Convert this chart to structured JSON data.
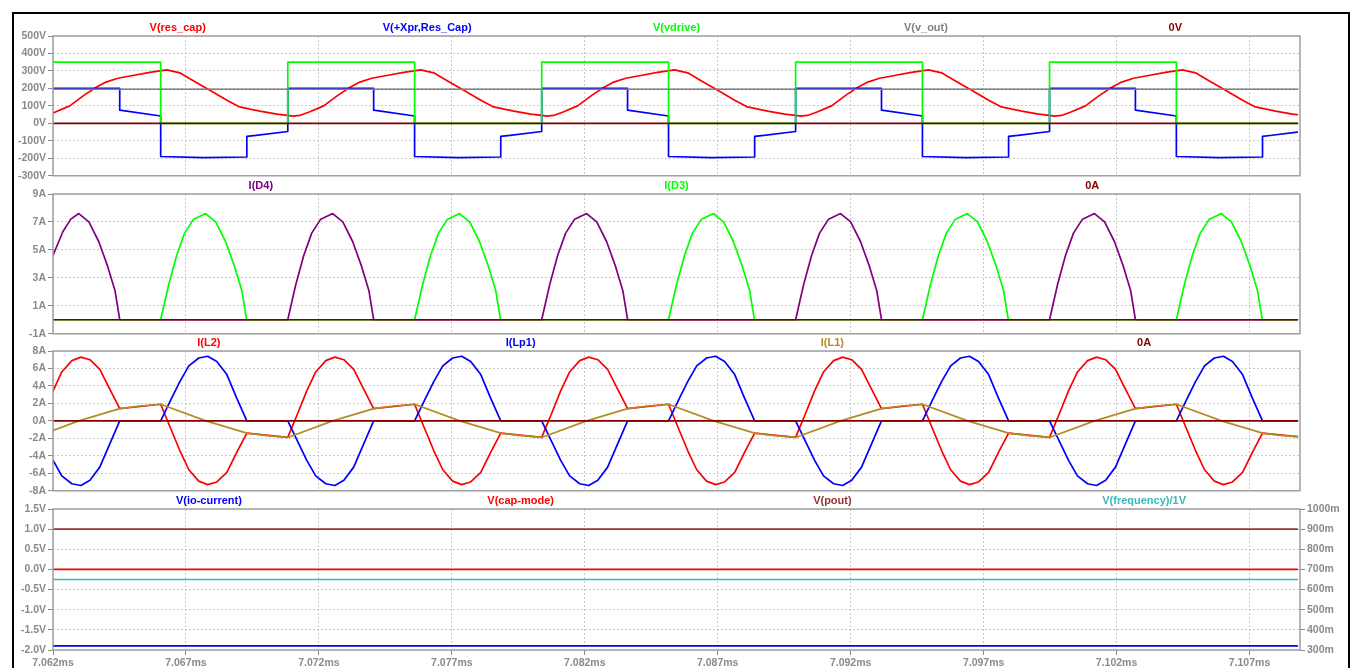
{
  "chart_data": [
    {
      "type": "line",
      "xlim": [
        7.062,
        7.1089
      ],
      "xticks": [
        {
          "value": 7.062,
          "label": null
        },
        {
          "value": 7.067,
          "label": null
        },
        {
          "value": 7.072,
          "label": null
        },
        {
          "value": 7.077,
          "label": null
        },
        {
          "value": 7.082,
          "label": null
        },
        {
          "value": 7.087,
          "label": null
        },
        {
          "value": 7.092,
          "label": null
        },
        {
          "value": 7.097,
          "label": null
        },
        {
          "value": 7.102,
          "label": null
        },
        {
          "value": 7.107,
          "label": null
        }
      ],
      "ylim": [
        -300,
        500
      ],
      "yticks": [
        {
          "value": -300,
          "label": "-300V"
        },
        {
          "value": -200,
          "label": "-200V"
        },
        {
          "value": -100,
          "label": "-100V"
        },
        {
          "value": 0,
          "label": "0V"
        },
        {
          "value": 100,
          "label": "100V"
        },
        {
          "value": 200,
          "label": "200V"
        },
        {
          "value": 300,
          "label": "300V"
        },
        {
          "value": 400,
          "label": "400V"
        },
        {
          "value": 500,
          "label": "500V"
        }
      ],
      "tick_labels": "y",
      "grid": true,
      "legend": "top",
      "marker": "none",
      "series": [
        {
          "name": "V(res_cap)",
          "color": "#ff0000",
          "x": [
            7.062,
            7.06211,
            7.06263,
            7.06316,
            7.06361,
            7.06399,
            7.06444,
            7.065,
            7.06564,
            7.06628,
            7.06677,
            7.06726,
            7.0679,
            7.06854,
            7.06902,
            7.06978,
            7.07042,
            7.07083,
            7.07102,
            7.07128,
            7.07166,
            7.07218,
            7.07271,
            7.07316,
            7.07354,
            7.07399,
            7.07455,
            7.07519,
            7.07583,
            7.07632,
            7.07681,
            7.07745,
            7.07809,
            7.07857,
            7.07933,
            7.07997,
            7.08038,
            7.08057,
            7.08083,
            7.08121,
            7.08173,
            7.08226,
            7.08271,
            7.08309,
            7.08354,
            7.0841,
            7.08474,
            7.08538,
            7.08587,
            7.08636,
            7.087,
            7.08764,
            7.08812,
            7.08888,
            7.08952,
            7.08993,
            7.09012,
            7.09038,
            7.09076,
            7.09128,
            7.09181,
            7.09226,
            7.09264,
            7.09309,
            7.09365,
            7.09429,
            7.09493,
            7.09542,
            7.09591,
            7.09655,
            7.09719,
            7.09767,
            7.09843,
            7.09907,
            7.09948,
            7.09967,
            7.09993,
            7.10031,
            7.10083,
            7.10136,
            7.10181,
            7.10219,
            7.10264,
            7.1032,
            7.10384,
            7.10448,
            7.10497,
            7.10546,
            7.1061,
            7.10674,
            7.10722,
            7.10798,
            7.10862,
            7.1088
          ],
          "values": [
            58,
            66,
            100,
            160,
            205,
            236,
            258,
            274,
            292,
            306,
            289,
            245,
            189,
            132,
            94,
            70,
            53,
            45,
            41,
            45,
            66,
            100,
            160,
            205,
            236,
            258,
            274,
            292,
            306,
            289,
            245,
            189,
            132,
            94,
            70,
            53,
            45,
            41,
            45,
            66,
            100,
            160,
            205,
            236,
            258,
            274,
            292,
            306,
            289,
            245,
            189,
            132,
            94,
            70,
            53,
            45,
            41,
            45,
            66,
            100,
            160,
            205,
            236,
            258,
            274,
            292,
            306,
            289,
            245,
            189,
            132,
            94,
            70,
            53,
            45,
            41,
            45,
            66,
            100,
            160,
            205,
            236,
            258,
            274,
            292,
            306,
            289,
            245,
            189,
            132,
            94,
            70,
            53,
            50
          ]
        },
        {
          "name": "V(+Xpr,Res_Cap)",
          "color": "#0000ff",
          "x": [
            7.062,
            7.06451,
            7.06451,
            7.06605,
            7.06605,
            7.06767,
            7.06929,
            7.06929,
            7.07083,
            7.07083,
            7.07406,
            7.07406,
            7.0756,
            7.0756,
            7.07722,
            7.07884,
            7.07884,
            7.08038,
            7.08038,
            7.08361,
            7.08361,
            7.08515,
            7.08515,
            7.08677,
            7.08839,
            7.08839,
            7.08993,
            7.08993,
            7.09316,
            7.09316,
            7.0947,
            7.0947,
            7.09632,
            7.09794,
            7.09794,
            7.09948,
            7.09948,
            7.10271,
            7.10271,
            7.10425,
            7.10425,
            7.10587,
            7.10749,
            7.10749,
            7.1088
          ],
          "values": [
            200,
            200,
            75,
            42,
            -190,
            -197,
            -193,
            -75,
            -47,
            200,
            200,
            75,
            42,
            -190,
            -197,
            -193,
            -75,
            -47,
            200,
            200,
            75,
            42,
            -190,
            -197,
            -193,
            -75,
            -47,
            200,
            200,
            75,
            42,
            -190,
            -197,
            -193,
            -75,
            -47,
            200,
            200,
            75,
            42,
            -190,
            -197,
            -193,
            -75,
            -51
          ]
        },
        {
          "name": "V(vdrive)",
          "color": "#00ff00",
          "x": [
            7.062,
            7.06605,
            7.06605,
            7.07083,
            7.07083,
            7.0756,
            7.0756,
            7.08038,
            7.08038,
            7.08515,
            7.08515,
            7.08993,
            7.08993,
            7.0947,
            7.0947,
            7.09948,
            7.09948,
            7.10425,
            7.10425,
            7.1088
          ],
          "values": [
            350,
            350,
            0,
            0,
            350,
            350,
            0,
            0,
            350,
            350,
            0,
            0,
            350,
            350,
            0,
            0,
            350,
            350,
            0,
            0
          ]
        },
        {
          "name": "V(v_out)",
          "color": "#808080",
          "x": [
            7.062,
            7.1088
          ],
          "values": [
            195,
            195
          ]
        },
        {
          "name": "0V",
          "color": "#800000",
          "x": [
            7.062,
            7.1088
          ],
          "values": [
            0,
            0
          ]
        }
      ]
    },
    {
      "type": "line",
      "xlim": [
        7.062,
        7.1089
      ],
      "xticks": [
        {
          "value": 7.062,
          "label": null
        },
        {
          "value": 7.067,
          "label": null
        },
        {
          "value": 7.072,
          "label": null
        },
        {
          "value": 7.077,
          "label": null
        },
        {
          "value": 7.082,
          "label": null
        },
        {
          "value": 7.087,
          "label": null
        },
        {
          "value": 7.092,
          "label": null
        },
        {
          "value": 7.097,
          "label": null
        },
        {
          "value": 7.102,
          "label": null
        },
        {
          "value": 7.107,
          "label": null
        }
      ],
      "ylim": [
        -1,
        9
      ],
      "yticks": [
        {
          "value": -1,
          "label": "-1A"
        },
        {
          "value": 1,
          "label": "1A"
        },
        {
          "value": 3,
          "label": "3A"
        },
        {
          "value": 5,
          "label": "5A"
        },
        {
          "value": 7,
          "label": "7A"
        },
        {
          "value": 9,
          "label": "9A"
        }
      ],
      "tick_labels": "y",
      "grid": true,
      "legend": "top",
      "marker": "none",
      "series": [
        {
          "name": "I(D4)",
          "color": "#800080",
          "x": [
            7.062,
            7.06237,
            7.06267,
            7.06297,
            7.06335,
            7.06372,
            7.06406,
            7.06433,
            7.06451,
            7.07083,
            7.07113,
            7.07143,
            7.07173,
            7.07207,
            7.07252,
            7.0729,
            7.07327,
            7.07361,
            7.07388,
            7.07406,
            7.08038,
            7.08068,
            7.08098,
            7.08128,
            7.08162,
            7.08207,
            7.08245,
            7.08282,
            7.08316,
            7.08343,
            7.08361,
            7.08993,
            7.09023,
            7.09053,
            7.09083,
            7.09117,
            7.09162,
            7.092,
            7.09237,
            7.09271,
            7.09298,
            7.09316,
            7.09948,
            7.09978,
            7.10008,
            7.10038,
            7.10072,
            7.10117,
            7.10155,
            7.10192,
            7.10226,
            7.10253,
            7.10271,
            7.1088
          ],
          "values": [
            4.6,
            6.3,
            7.2,
            7.6,
            7.0,
            5.6,
            3.8,
            2.1,
            0,
            0,
            2.5,
            4.6,
            6.2,
            7.2,
            7.6,
            7.0,
            5.6,
            3.8,
            2.1,
            0,
            0,
            2.5,
            4.6,
            6.2,
            7.2,
            7.6,
            7.0,
            5.6,
            3.8,
            2.1,
            0,
            0,
            2.5,
            4.6,
            6.2,
            7.2,
            7.6,
            7.0,
            5.6,
            3.8,
            2.1,
            0,
            0,
            2.5,
            4.6,
            6.2,
            7.2,
            7.6,
            7.0,
            5.6,
            3.8,
            2.1,
            0,
            0
          ]
        },
        {
          "name": "I(D3)",
          "color": "#00ff00",
          "x": [
            7.062,
            7.06605,
            7.06635,
            7.06665,
            7.06695,
            7.06729,
            7.06774,
            7.06812,
            7.06849,
            7.06883,
            7.0691,
            7.06928,
            7.0756,
            7.0759,
            7.0762,
            7.0765,
            7.07684,
            7.07729,
            7.07767,
            7.07804,
            7.07838,
            7.07865,
            7.07883,
            7.08515,
            7.08545,
            7.08575,
            7.08605,
            7.08639,
            7.08684,
            7.08722,
            7.08759,
            7.08793,
            7.0882,
            7.08838,
            7.0947,
            7.095,
            7.0953,
            7.0956,
            7.09594,
            7.09639,
            7.09677,
            7.09714,
            7.09748,
            7.09775,
            7.09793,
            7.10425,
            7.10455,
            7.10485,
            7.10515,
            7.10549,
            7.10594,
            7.10632,
            7.10669,
            7.10703,
            7.1073,
            7.10748,
            7.1088
          ],
          "values": [
            0,
            0,
            2.5,
            4.6,
            6.2,
            7.2,
            7.6,
            7.0,
            5.6,
            3.8,
            2.1,
            0,
            0,
            2.5,
            4.6,
            6.2,
            7.2,
            7.6,
            7.0,
            5.6,
            3.8,
            2.1,
            0,
            0,
            2.5,
            4.6,
            6.2,
            7.2,
            7.6,
            7.0,
            5.6,
            3.8,
            2.1,
            0,
            0,
            2.5,
            4.6,
            6.2,
            7.2,
            7.6,
            7.0,
            5.6,
            3.8,
            2.1,
            0,
            0,
            2.5,
            4.6,
            6.2,
            7.2,
            7.6,
            7.0,
            5.6,
            3.8,
            2.1,
            0,
            0
          ]
        },
        {
          "name": "0A",
          "color": "#800000",
          "x": [
            7.062,
            7.1088
          ],
          "values": [
            0,
            0
          ]
        }
      ]
    },
    {
      "type": "line",
      "xlim": [
        7.062,
        7.1089
      ],
      "xticks": [
        {
          "value": 7.062,
          "label": null
        },
        {
          "value": 7.067,
          "label": null
        },
        {
          "value": 7.072,
          "label": null
        },
        {
          "value": 7.077,
          "label": null
        },
        {
          "value": 7.082,
          "label": null
        },
        {
          "value": 7.087,
          "label": null
        },
        {
          "value": 7.092,
          "label": null
        },
        {
          "value": 7.097,
          "label": null
        },
        {
          "value": 7.102,
          "label": null
        },
        {
          "value": 7.107,
          "label": null
        }
      ],
      "ylim": [
        -8,
        8
      ],
      "yticks": [
        {
          "value": -8,
          "label": "-8A"
        },
        {
          "value": -6,
          "label": "-6A"
        },
        {
          "value": -4,
          "label": "-4A"
        },
        {
          "value": -2,
          "label": "-2A"
        },
        {
          "value": 0,
          "label": "0A"
        },
        {
          "value": 2,
          "label": "2A"
        },
        {
          "value": 4,
          "label": "4A"
        },
        {
          "value": 6,
          "label": "6A"
        },
        {
          "value": 8,
          "label": "8A"
        }
      ],
      "tick_labels": "y",
      "grid": true,
      "legend": "top",
      "marker": "none",
      "x": [
        7.062,
        7.06233,
        7.06271,
        7.06305,
        7.06339,
        7.06376,
        7.06414,
        7.06451,
        7.06605,
        7.06643,
        7.06677,
        7.06711,
        7.06748,
        7.06782,
        7.06816,
        7.06854,
        7.06891,
        7.06929,
        7.07083,
        7.07121,
        7.07154,
        7.07188,
        7.07226,
        7.0726,
        7.07294,
        7.07331,
        7.07369,
        7.07406,
        7.0756,
        7.07598,
        7.07632,
        7.07666,
        7.07703,
        7.07737,
        7.07771,
        7.07809,
        7.07846,
        7.07884,
        7.08038,
        7.08076,
        7.08109,
        7.08143,
        7.08181,
        7.08215,
        7.08249,
        7.08286,
        7.08324,
        7.08361,
        7.08515,
        7.08553,
        7.08587,
        7.08621,
        7.08658,
        7.08692,
        7.08726,
        7.08764,
        7.08801,
        7.08839,
        7.08993,
        7.09031,
        7.09064,
        7.09098,
        7.09136,
        7.0917,
        7.09204,
        7.09241,
        7.09279,
        7.09316,
        7.0947,
        7.09508,
        7.09542,
        7.09576,
        7.09613,
        7.09647,
        7.09681,
        7.09719,
        7.09756,
        7.09794,
        7.09948,
        7.09986,
        7.10019,
        7.10053,
        7.10091,
        7.10125,
        7.10159,
        7.10196,
        7.10234,
        7.10271,
        7.10425,
        7.10463,
        7.10497,
        7.10531,
        7.10568,
        7.10602,
        7.10636,
        7.10674,
        7.10711,
        7.10749,
        7.1088
      ],
      "series": [
        {
          "name": "I(L2)",
          "color": "#ff0000",
          "values": [
            3.4,
            5.6,
            6.9,
            7.3,
            7.0,
            5.9,
            3.6,
            1.4,
            1.9,
            -0.9,
            -3.4,
            -5.6,
            -6.9,
            -7.3,
            -7.0,
            -5.9,
            -3.6,
            -1.4,
            -1.9,
            0.9,
            3.4,
            5.6,
            6.9,
            7.3,
            7.0,
            5.9,
            3.6,
            1.4,
            1.9,
            -0.9,
            -3.4,
            -5.6,
            -6.9,
            -7.3,
            -7.0,
            -5.9,
            -3.6,
            -1.4,
            -1.9,
            0.9,
            3.4,
            5.6,
            6.9,
            7.3,
            7.0,
            5.9,
            3.6,
            1.4,
            1.9,
            -0.9,
            -3.4,
            -5.6,
            -6.9,
            -7.3,
            -7.0,
            -5.9,
            -3.6,
            -1.4,
            -1.9,
            0.9,
            3.4,
            5.6,
            6.9,
            7.3,
            7.0,
            5.9,
            3.6,
            1.4,
            1.9,
            -0.9,
            -3.4,
            -5.6,
            -6.9,
            -7.3,
            -7.0,
            -5.9,
            -3.6,
            -1.4,
            -1.9,
            0.9,
            3.4,
            5.6,
            6.9,
            7.3,
            7.0,
            5.9,
            3.6,
            1.4,
            1.9,
            -0.9,
            -3.4,
            -5.6,
            -6.9,
            -7.3,
            -7.0,
            -5.9,
            -3.6,
            -1.4,
            -1.8
          ]
        },
        {
          "name": "I(Lp1)",
          "color": "#0000ff",
          "values": [
            -4.5,
            -6.3,
            -7.2,
            -7.4,
            -6.8,
            -5.3,
            -2.6,
            0,
            0,
            2.4,
            4.5,
            6.3,
            7.2,
            7.4,
            6.8,
            5.3,
            2.6,
            0,
            0,
            -2.4,
            -4.5,
            -6.3,
            -7.2,
            -7.4,
            -6.8,
            -5.3,
            -2.6,
            0,
            0,
            2.4,
            4.5,
            6.3,
            7.2,
            7.4,
            6.8,
            5.3,
            2.6,
            0,
            0,
            -2.4,
            -4.5,
            -6.3,
            -7.2,
            -7.4,
            -6.8,
            -5.3,
            -2.6,
            0,
            0,
            2.4,
            4.5,
            6.3,
            7.2,
            7.4,
            6.8,
            5.3,
            2.6,
            0,
            0,
            -2.4,
            -4.5,
            -6.3,
            -7.2,
            -7.4,
            -6.8,
            -5.3,
            -2.6,
            0,
            0,
            2.4,
            4.5,
            6.3,
            7.2,
            7.4,
            6.8,
            5.3,
            2.6,
            0,
            0,
            -2.4,
            -4.5,
            -6.3,
            -7.2,
            -7.4,
            -6.8,
            -5.3,
            -2.6,
            0,
            0,
            2.4,
            4.5,
            6.3,
            7.2,
            7.4,
            6.8,
            5.3,
            2.6,
            0,
            0
          ]
        },
        {
          "name": "I(L1)",
          "color": "#b58b24",
          "x": [
            7.062,
            7.06297,
            7.06451,
            7.06526,
            7.06605,
            7.06775,
            7.06929,
            7.07004,
            7.07083,
            7.07252,
            7.07406,
            7.07481,
            7.0756,
            7.0773,
            7.07884,
            7.07959,
            7.08038,
            7.08207,
            7.08361,
            7.08436,
            7.08515,
            7.08685,
            7.08839,
            7.08914,
            7.08993,
            7.09162,
            7.09316,
            7.09391,
            7.0947,
            7.0964,
            7.09794,
            7.09869,
            7.09948,
            7.10117,
            7.10271,
            7.10346,
            7.10425,
            7.10595,
            7.10749,
            7.10824,
            7.1088
          ],
          "values": [
            -1.1,
            0,
            1.4,
            1.7,
            1.9,
            0,
            -1.4,
            -1.7,
            -1.9,
            0,
            1.4,
            1.7,
            1.9,
            0,
            -1.4,
            -1.7,
            -1.9,
            0,
            1.4,
            1.7,
            1.9,
            0,
            -1.4,
            -1.7,
            -1.9,
            0,
            1.4,
            1.7,
            1.9,
            0,
            -1.4,
            -1.7,
            -1.9,
            0,
            1.4,
            1.7,
            1.9,
            0,
            -1.4,
            -1.7,
            -1.8
          ]
        },
        {
          "name": "0A",
          "color": "#800000",
          "x": [
            7.062,
            7.1088
          ],
          "values": [
            0,
            0
          ]
        }
      ]
    },
    {
      "type": "line",
      "xlim": [
        7.062,
        7.1089
      ],
      "xticks": [
        {
          "value": 7.062,
          "label": "7.062ms"
        },
        {
          "value": 7.067,
          "label": "7.067ms"
        },
        {
          "value": 7.072,
          "label": "7.072ms"
        },
        {
          "value": 7.077,
          "label": "7.077ms"
        },
        {
          "value": 7.082,
          "label": "7.082ms"
        },
        {
          "value": 7.087,
          "label": "7.087ms"
        },
        {
          "value": 7.092,
          "label": "7.092ms"
        },
        {
          "value": 7.097,
          "label": "7.097ms"
        },
        {
          "value": 7.102,
          "label": "7.102ms"
        },
        {
          "value": 7.107,
          "label": "7.107ms"
        }
      ],
      "ylim": [
        -2,
        1.5
      ],
      "yticks": [
        {
          "value": -2,
          "label": "-2.0V"
        },
        {
          "value": -1.5,
          "label": "-1.5V"
        },
        {
          "value": -1,
          "label": "-1.0V"
        },
        {
          "value": -0.5,
          "label": "-0.5V"
        },
        {
          "value": 0,
          "label": "0.0V"
        },
        {
          "value": 0.5,
          "label": "0.5V"
        },
        {
          "value": 1,
          "label": "1.0V"
        },
        {
          "value": 1.5,
          "label": "1.5V"
        }
      ],
      "y2lim": [
        300,
        1000
      ],
      "y2ticks": [
        {
          "value": 300,
          "label": "300m"
        },
        {
          "value": 400,
          "label": "400m"
        },
        {
          "value": 500,
          "label": "500m"
        },
        {
          "value": 600,
          "label": "600m"
        },
        {
          "value": 700,
          "label": "700m"
        },
        {
          "value": 800,
          "label": "800m"
        },
        {
          "value": 900,
          "label": "900m"
        },
        {
          "value": 1000,
          "label": "1000m"
        }
      ],
      "grid": true,
      "legend": "top",
      "marker": "none",
      "series": [
        {
          "name": "V(io-current)",
          "color": "#0000ff",
          "x": [
            7.062,
            7.1088
          ],
          "values": [
            -1.9,
            -1.9
          ]
        },
        {
          "name": "V(cap-mode)",
          "color": "#ff0000",
          "x": [
            7.062,
            7.1088
          ],
          "values": [
            0,
            0
          ]
        },
        {
          "name": "V(pout)",
          "color": "#993333",
          "x": [
            7.062,
            7.1088
          ],
          "values": [
            1,
            1
          ]
        },
        {
          "name": "V(frequency)/1V",
          "color": "#3cb8b8",
          "axis": "y2",
          "x": [
            7.062,
            7.1088
          ],
          "values": [
            650,
            650
          ]
        }
      ]
    }
  ]
}
